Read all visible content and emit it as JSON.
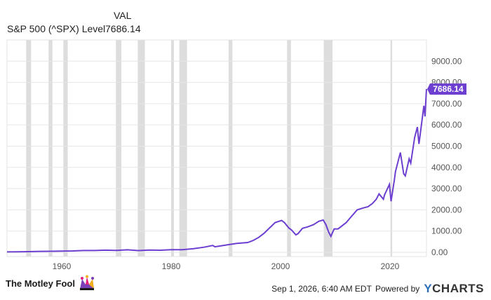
{
  "legend": {
    "column_header": "VAL",
    "series_label": "S&P 500 (^SPX) Level",
    "series_value": "7686.14"
  },
  "chart_data": {
    "type": "line",
    "title": "",
    "xlabel": "",
    "ylabel": "",
    "x_range": [
      1950.0,
      2026.67
    ],
    "ylim": [
      -200,
      10000
    ],
    "y_ticks": [
      "0.00",
      "1000.00",
      "2000.00",
      "3000.00",
      "4000.00",
      "5000.00",
      "6000.00",
      "7000.00",
      "8000.00",
      "9000.00"
    ],
    "y_tick_values": [
      0,
      1000,
      2000,
      3000,
      4000,
      5000,
      6000,
      7000,
      8000,
      9000
    ],
    "x_ticks": [
      "1960",
      "1980",
      "2000",
      "2020"
    ],
    "x_tick_values": [
      1960,
      1980,
      2000,
      2020
    ],
    "grid": "horizontal",
    "line_color": "#6d3fd0",
    "recession_color": "#dddddd",
    "last_value_label": "7686.14",
    "recessions": [
      [
        1953.5,
        1954.4
      ],
      [
        1957.6,
        1958.3
      ],
      [
        1960.3,
        1961.1
      ],
      [
        1969.9,
        1970.9
      ],
      [
        1973.9,
        1975.2
      ],
      [
        1980.0,
        1980.5
      ],
      [
        1981.5,
        1982.9
      ],
      [
        1990.5,
        1991.2
      ],
      [
        2001.2,
        2001.9
      ],
      [
        2007.9,
        2009.5
      ],
      [
        2020.1,
        2020.4
      ]
    ],
    "series": [
      {
        "x": [
          1950,
          1952,
          1954,
          1956,
          1958,
          1960,
          1962,
          1964,
          1966,
          1968,
          1970,
          1972,
          1974,
          1976,
          1978,
          1980,
          1982,
          1984,
          1986,
          1987.6,
          1988,
          1990,
          1992,
          1994,
          1995,
          1996,
          1997,
          1998,
          1999,
          2000.2,
          2000.7,
          2001.5,
          2002,
          2002.8,
          2003.2,
          2004,
          2005,
          2006,
          2007,
          2007.8,
          2008.3,
          2008.8,
          2009.2,
          2009.8,
          2010.5,
          2011.5,
          2012,
          2013,
          2014,
          2015,
          2016,
          2016.8,
          2017.5,
          2018,
          2018.8,
          2019,
          2019.9,
          2020.2,
          2020.8,
          2021,
          2021.9,
          2022.5,
          2022.8,
          2023.5,
          2023.8,
          2024.5,
          2025,
          2025.3,
          2025.8,
          2026.2,
          2026.4,
          2026.67
        ],
        "y": [
          17,
          24,
          30,
          45,
          48,
          58,
          65,
          84,
          85,
          100,
          90,
          118,
          80,
          105,
          96,
          125,
          120,
          165,
          240,
          320,
          260,
          340,
          420,
          460,
          560,
          700,
          900,
          1150,
          1400,
          1500,
          1400,
          1150,
          1050,
          820,
          880,
          1130,
          1200,
          1300,
          1460,
          1520,
          1300,
          950,
          750,
          1100,
          1100,
          1300,
          1400,
          1700,
          2000,
          2080,
          2150,
          2300,
          2500,
          2750,
          2500,
          2700,
          3200,
          2400,
          3400,
          3800,
          4700,
          3700,
          3600,
          4400,
          4200,
          5400,
          5900,
          5100,
          6100,
          6900,
          6400,
          7686.14
        ]
      }
    ]
  },
  "footer": {
    "brand": "The Motley Fool",
    "timestamp": "Sep 1, 2026, 6:40 AM EDT",
    "powered_by": "Powered by",
    "ycharts_y": "Y",
    "ycharts_rest": "CHARTS"
  }
}
